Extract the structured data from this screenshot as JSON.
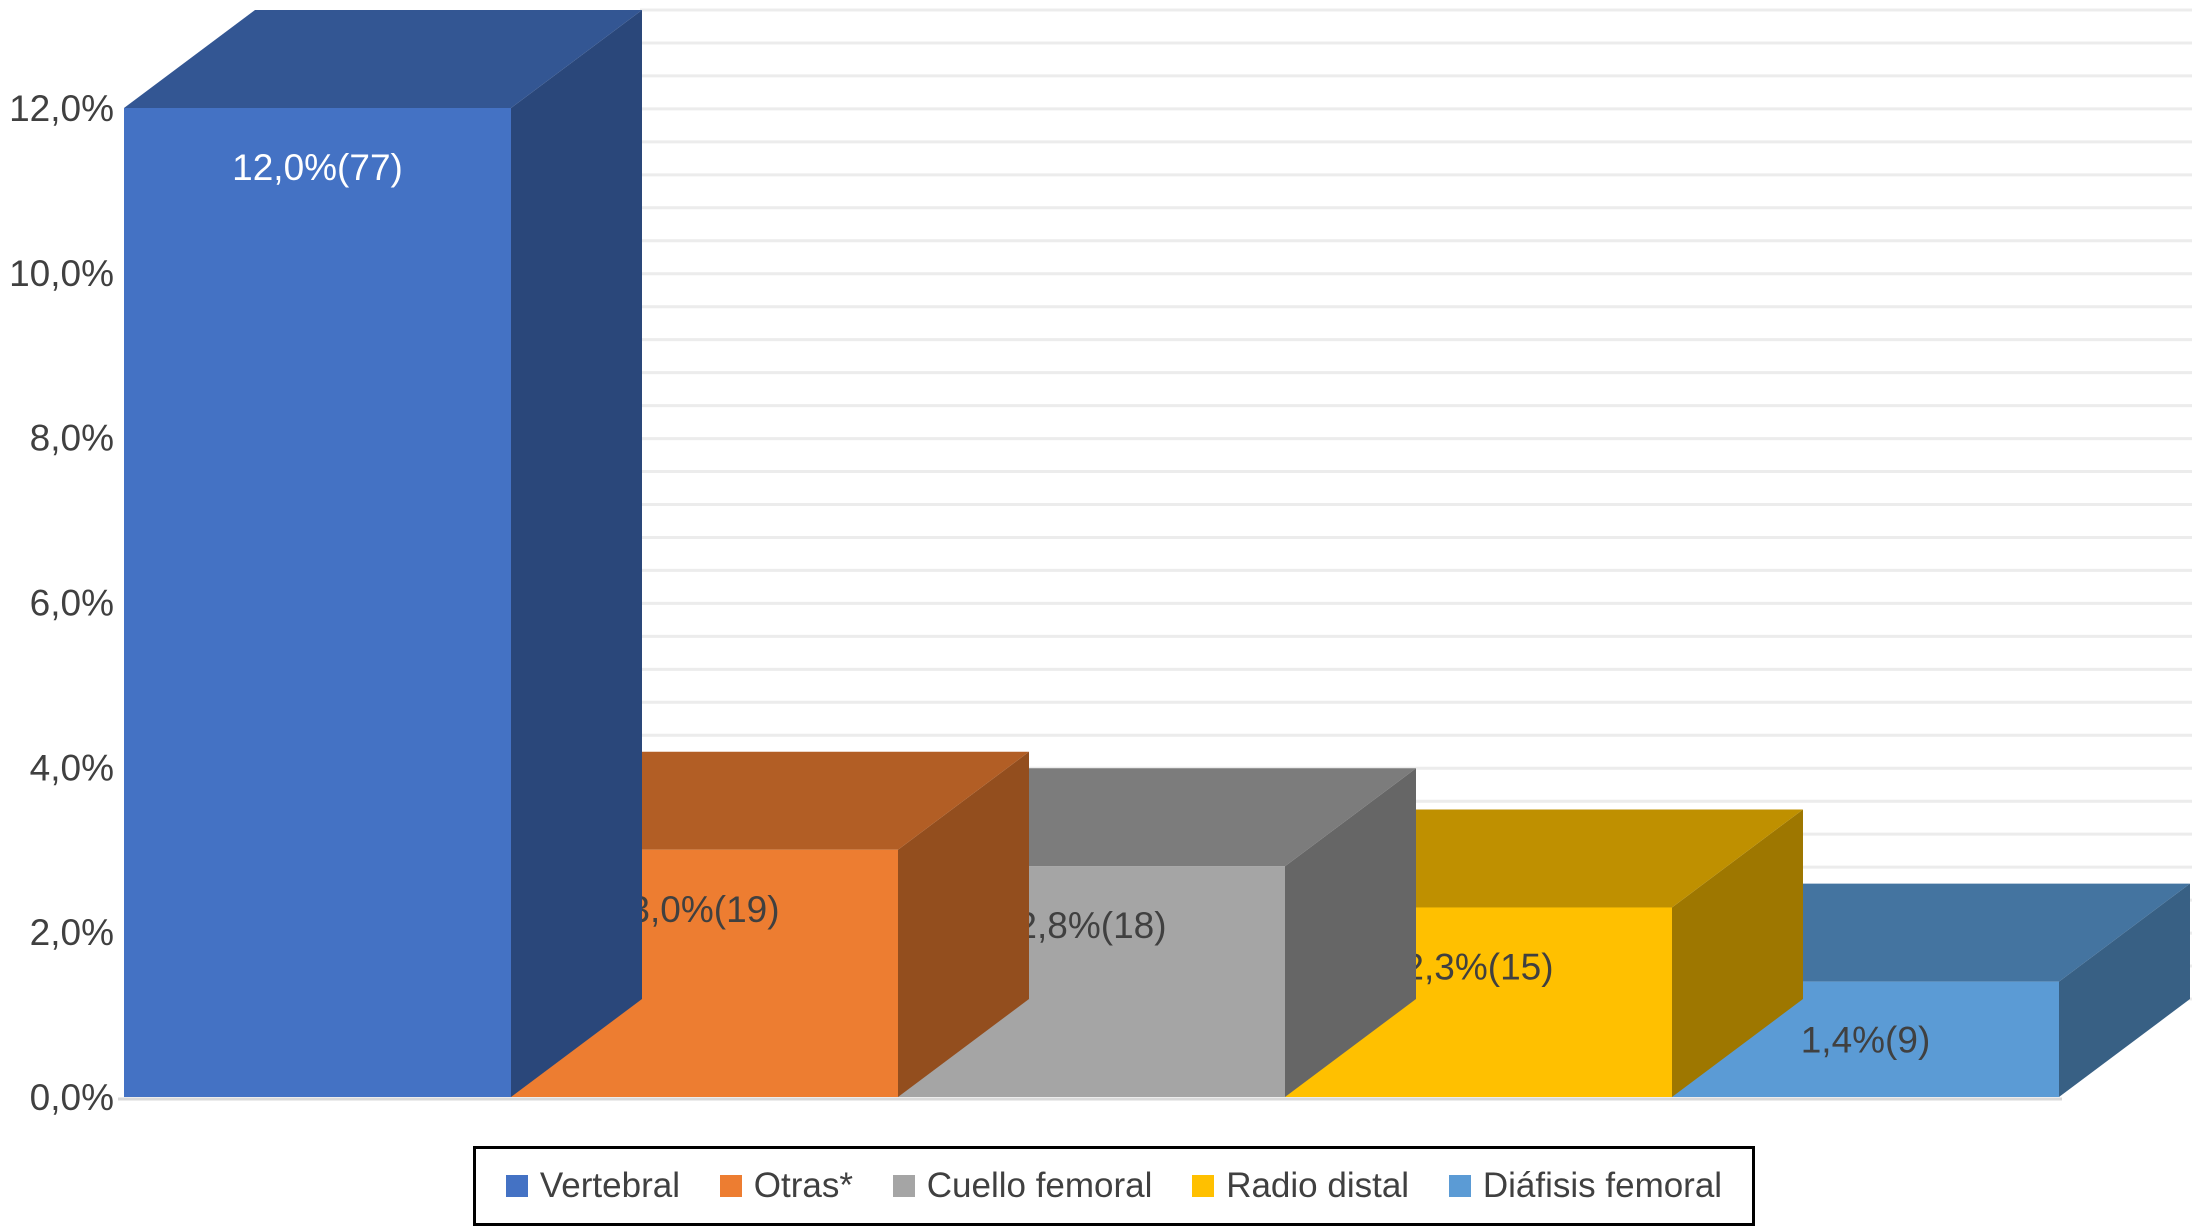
{
  "chart_data": {
    "type": "bar",
    "three_d": true,
    "categories": [
      "Vertebral",
      "Otras*",
      "Cuello femoral",
      "Radio distal",
      "Diáfisis femoral"
    ],
    "values": [
      12.0,
      3.0,
      2.8,
      2.3,
      1.4
    ],
    "data_labels": [
      "12,0%(77)",
      "3,0%(19)",
      "2,8%(18)",
      "2,3%(15)",
      "1,4%(9)"
    ],
    "label_colors": [
      "#ffffff",
      "#404040",
      "#404040",
      "#404040",
      "#404040"
    ],
    "colors": [
      "#4472c4",
      "#ed7d31",
      "#a5a5a5",
      "#ffc000",
      "#5b9bd5"
    ],
    "y_ticks": [
      "0,0%",
      "2,0%",
      "4,0%",
      "6,0%",
      "8,0%",
      "10,0%",
      "12,0%"
    ],
    "ylim": [
      0,
      12
    ],
    "grid": true,
    "legend_position": "bottom",
    "title": "",
    "xlabel": "",
    "ylabel": ""
  }
}
